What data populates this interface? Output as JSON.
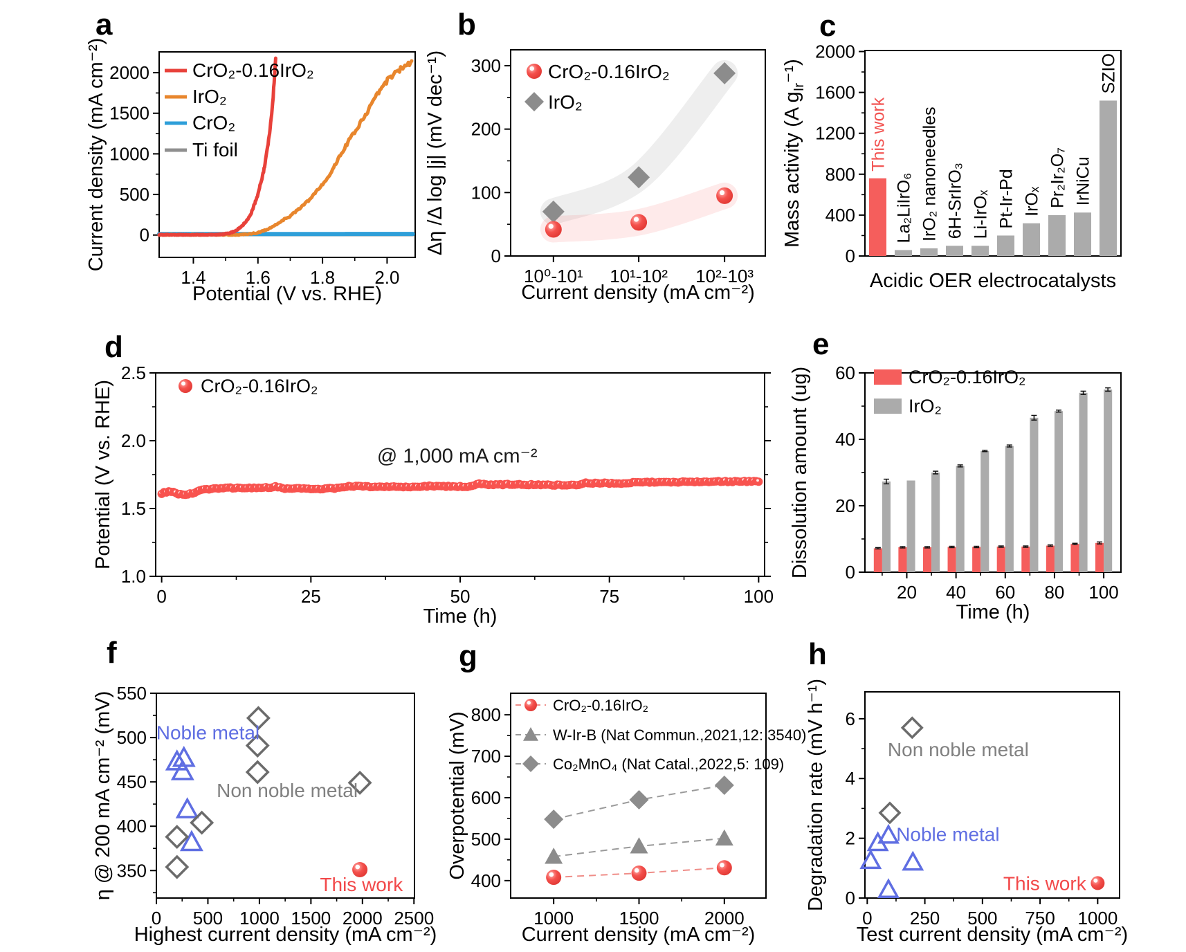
{
  "figure_title": "Acidic OER electrocatalyst performance figure",
  "chart_data": [
    {
      "panel": "a",
      "type": "line",
      "xlabel": "Potential (V vs. RHE)",
      "ylabel": "Current density (mA cm⁻²)",
      "xlim": [
        1.294,
        2.087
      ],
      "ylim": [
        -275,
        2256
      ],
      "xticks": [
        1.4,
        1.6,
        1.8,
        2.0
      ],
      "xtick_labels": [
        "1.4",
        "1.6",
        "1.8",
        "2.0"
      ],
      "yticks": [
        0,
        500,
        1000,
        1500,
        2000
      ],
      "ytick_labels": [
        "0",
        "500",
        "1000",
        "1500",
        "2000"
      ],
      "series": [
        {
          "name": "CrO₂-0.16IrO₂",
          "color": "#e8413a",
          "width": 5,
          "points": [
            [
              1.294,
              2
            ],
            [
              1.44,
              2
            ],
            [
              1.48,
              6
            ],
            [
              1.51,
              20
            ],
            [
              1.53,
              50
            ],
            [
              1.55,
              110
            ],
            [
              1.57,
              200
            ],
            [
              1.58,
              280
            ],
            [
              1.6,
              500
            ],
            [
              1.62,
              830
            ],
            [
              1.63,
              1080
            ],
            [
              1.64,
              1390
            ],
            [
              1.645,
              1600
            ],
            [
              1.65,
              1880
            ],
            [
              1.652,
              2020
            ],
            [
              1.654,
              2120
            ],
            [
              1.655,
              2180
            ]
          ]
        },
        {
          "name": "IrO₂",
          "color": "#e8862d",
          "width": 5,
          "points": [
            [
              1.294,
              2
            ],
            [
              1.54,
              2
            ],
            [
              1.58,
              15
            ],
            [
              1.6,
              30
            ],
            [
              1.62,
              55
            ],
            [
              1.64,
              90
            ],
            [
              1.66,
              140
            ],
            [
              1.68,
              190
            ],
            [
              1.7,
              235
            ],
            [
              1.73,
              330
            ],
            [
              1.76,
              440
            ],
            [
              1.79,
              580
            ],
            [
              1.82,
              730
            ],
            [
              1.85,
              950
            ],
            [
              1.88,
              1150
            ],
            [
              1.91,
              1330
            ],
            [
              1.94,
              1530
            ],
            [
              1.97,
              1750
            ],
            [
              2.0,
              1900
            ],
            [
              2.03,
              2010
            ],
            [
              2.05,
              2070
            ],
            [
              2.076,
              2140
            ]
          ]
        },
        {
          "name": "CrO₂",
          "color": "#2e9fd9",
          "width": 6,
          "points": [
            [
              1.294,
              12
            ],
            [
              2.08,
              14
            ]
          ]
        },
        {
          "name": "Ti foil",
          "color": "#8f8f8f",
          "width": 4,
          "points": [
            [
              1.294,
              2
            ],
            [
              2.08,
              2
            ]
          ]
        }
      ]
    },
    {
      "panel": "b",
      "type": "tafel-scatter",
      "xlabel": "Current density (mA cm⁻²)",
      "ylabel": "Δη /Δ log |j| (mV dec⁻¹)",
      "ylim": [
        0,
        325
      ],
      "categories": [
        "10⁰-10¹",
        "10¹-10²",
        "10²-10³"
      ],
      "yticks": [
        0,
        100,
        200,
        300
      ],
      "ytick_labels": [
        "0",
        "100",
        "200",
        "300"
      ],
      "series": [
        {
          "name": "IrO₂",
          "marker": "diamond",
          "color": "#8c8c8c",
          "band": "rgba(150,150,150,0.16)",
          "values": [
            70,
            124,
            288
          ]
        },
        {
          "name": "CrO₂-0.16IrO₂",
          "marker": "ball",
          "color": "#f4504c",
          "band": "rgba(246,95,95,0.13)",
          "values": [
            42,
            53,
            95
          ]
        }
      ],
      "legend_order": [
        "CrO₂-0.16IrO₂",
        "IrO₂"
      ]
    },
    {
      "panel": "c",
      "type": "bar",
      "xlabel": "Acidic OER electrocatalysts",
      "ylabel": "Mass activity (A g~Ir~⁻¹)",
      "ylim": [
        0,
        2010
      ],
      "yticks": [
        0,
        400,
        800,
        1200,
        1600,
        2000
      ],
      "ytick_labels": [
        "0",
        "400",
        "800",
        "1200",
        "1600",
        "2000"
      ],
      "categories": [
        "This work",
        "La₂LiIrO₆",
        "IrO₂ nanoneedles",
        "6H-SrIrO₃",
        "Li-IrOₓ",
        "Pt-Ir-Pd",
        "IrOₓ",
        "Pr₂Ir₂O₇",
        "IrNiCu",
        "SZIO"
      ],
      "values": [
        760,
        58,
        75,
        100,
        100,
        200,
        320,
        400,
        425,
        1520
      ],
      "bar_colors": [
        "#f55e5c",
        "#ababab",
        "#ababab",
        "#ababab",
        "#ababab",
        "#ababab",
        "#ababab",
        "#ababab",
        "#ababab",
        "#ababab"
      ],
      "label_colors": [
        "#f25553",
        "#000000",
        "#000000",
        "#000000",
        "#000000",
        "#000000",
        "#000000",
        "#000000",
        "#000000",
        "#000000"
      ]
    },
    {
      "panel": "d",
      "type": "stability-scatter",
      "xlabel": "Time (h)",
      "ylabel": "Potential (V vs. RHE)",
      "xlim": [
        -1,
        101
      ],
      "ylim": [
        1.0,
        2.5
      ],
      "xticks": [
        0,
        25,
        50,
        75,
        100
      ],
      "xtick_labels": [
        "0",
        "25",
        "50",
        "75",
        "100"
      ],
      "yticks": [
        1.0,
        1.5,
        2.0,
        2.5
      ],
      "ytick_labels": [
        "1.0",
        "1.5",
        "2.0",
        "2.5"
      ],
      "series_name": "CrO₂-0.16IrO₂",
      "color": "#f8534f",
      "annotation": {
        "text": "@ 1,000 mA cm⁻²",
        "x": 49.5,
        "y": 1.84,
        "color": "#1a1a1a"
      },
      "anchors": [
        [
          0,
          1.612
        ],
        [
          1,
          1.625
        ],
        [
          2,
          1.618
        ],
        [
          3,
          1.605
        ],
        [
          4,
          1.603
        ],
        [
          5,
          1.61
        ],
        [
          6,
          1.625
        ],
        [
          7,
          1.638
        ],
        [
          8,
          1.645
        ],
        [
          9,
          1.648
        ],
        [
          10,
          1.65
        ],
        [
          12,
          1.652
        ],
        [
          14,
          1.653
        ],
        [
          16,
          1.65
        ],
        [
          18,
          1.655
        ],
        [
          19,
          1.662
        ],
        [
          20,
          1.655
        ],
        [
          21,
          1.645
        ],
        [
          22,
          1.648
        ],
        [
          24,
          1.648
        ],
        [
          26,
          1.644
        ],
        [
          28,
          1.648
        ],
        [
          30,
          1.65
        ],
        [
          31,
          1.662
        ],
        [
          32,
          1.665
        ],
        [
          34,
          1.662
        ],
        [
          36,
          1.66
        ],
        [
          38,
          1.662
        ],
        [
          40,
          1.658
        ],
        [
          42,
          1.658
        ],
        [
          44,
          1.663
        ],
        [
          45,
          1.668
        ],
        [
          46,
          1.663
        ],
        [
          48,
          1.663
        ],
        [
          50,
          1.662
        ],
        [
          52,
          1.662
        ],
        [
          53,
          1.682
        ],
        [
          54,
          1.678
        ],
        [
          56,
          1.675
        ],
        [
          58,
          1.678
        ],
        [
          60,
          1.678
        ],
        [
          62,
          1.676
        ],
        [
          64,
          1.676
        ],
        [
          66,
          1.673
        ],
        [
          68,
          1.674
        ],
        [
          70,
          1.672
        ],
        [
          71,
          1.692
        ],
        [
          72,
          1.688
        ],
        [
          74,
          1.688
        ],
        [
          76,
          1.686
        ],
        [
          78,
          1.684
        ],
        [
          80,
          1.698
        ],
        [
          82,
          1.694
        ],
        [
          84,
          1.692
        ],
        [
          86,
          1.695
        ],
        [
          88,
          1.698
        ],
        [
          90,
          1.698
        ],
        [
          92,
          1.699
        ],
        [
          94,
          1.7
        ],
        [
          96,
          1.7
        ],
        [
          98,
          1.7
        ],
        [
          100,
          1.7
        ]
      ]
    },
    {
      "panel": "e",
      "type": "grouped-bar",
      "xlabel": "Time (h)",
      "ylabel": "Dissolution amount (ug)",
      "xlim": [
        3,
        107
      ],
      "ylim": [
        0,
        60
      ],
      "xticks": [
        20,
        40,
        60,
        80,
        100
      ],
      "xtick_labels": [
        "20",
        "40",
        "60",
        "80",
        "100"
      ],
      "yticks": [
        0,
        20,
        40,
        60
      ],
      "ytick_labels": [
        "0",
        "20",
        "40",
        "60"
      ],
      "x": [
        10,
        20,
        30,
        40,
        50,
        60,
        70,
        80,
        90,
        100
      ],
      "series": [
        {
          "name": "CrO₂-0.16IrO₂",
          "color": "#f55e5c",
          "values": [
            7.2,
            7.5,
            7.5,
            7.6,
            7.6,
            7.7,
            7.7,
            8.0,
            8.5,
            8.8
          ],
          "errors": [
            0.2,
            0.2,
            0.2,
            0.2,
            0.2,
            0.2,
            0.2,
            0.2,
            0.2,
            0.3
          ]
        },
        {
          "name": "IrO₂",
          "color": "#ababab",
          "values": [
            27.3,
            27.6,
            30.0,
            32.0,
            36.5,
            38.0,
            46.5,
            48.5,
            54.0,
            55.0
          ],
          "errors": [
            0.7,
            0.0,
            0.4,
            0.3,
            0.2,
            0.3,
            0.7,
            0.3,
            0.5,
            0.5
          ]
        }
      ]
    },
    {
      "panel": "f",
      "type": "scatter",
      "xlabel": "Highest current density (mA cm⁻²)",
      "ylabel": "η @ 200 mA cm⁻² (mV)",
      "xlim": [
        0,
        2505
      ],
      "ylim": [
        319,
        550
      ],
      "xticks": [
        0,
        500,
        1000,
        1500,
        2000,
        2500
      ],
      "xtick_labels": [
        "0",
        "500",
        "1000",
        "1500",
        "2000",
        "2500"
      ],
      "yticks": [
        350,
        400,
        450,
        500,
        550
      ],
      "ytick_labels": [
        "350",
        "400",
        "450",
        "500",
        "550"
      ],
      "series": [
        {
          "name": "Noble metal",
          "marker": "triangle-open",
          "color": "#5f6ee2",
          "points": [
            [
              200,
              473
            ],
            [
              267,
              477
            ],
            [
              254,
              462
            ],
            [
              300,
              419
            ],
            [
              342,
              382
            ]
          ]
        },
        {
          "name": "Non noble metal",
          "marker": "diamond-open",
          "color": "#6b6b6b",
          "points": [
            [
              990,
              522
            ],
            [
              982,
              491
            ],
            [
              982,
              461
            ],
            [
              1975,
              449
            ],
            [
              441,
              404
            ],
            [
              200,
              388
            ],
            [
              200,
              354
            ]
          ]
        },
        {
          "name": "This work",
          "marker": "ball",
          "color": "#f4504c",
          "points": [
            [
              1975,
              351
            ]
          ]
        }
      ],
      "annotations": [
        {
          "text": "Noble metal",
          "color": "#5f6ee2",
          "x": 500,
          "y": 505,
          "anchor": "middle"
        },
        {
          "text": "Non noble metal",
          "color": "#808080",
          "x": 1270,
          "y": 440,
          "anchor": "middle"
        },
        {
          "text": "This work",
          "color": "#f2494a",
          "x": 1990,
          "y": 334,
          "anchor": "middle"
        }
      ]
    },
    {
      "panel": "g",
      "type": "scatter-dash",
      "xlabel": "Current density (mA cm⁻²)",
      "ylabel": "Overpotential (mV)",
      "xlim": [
        748,
        2244
      ],
      "ylim": [
        358,
        852
      ],
      "xticks": [
        1000,
        1500,
        2000
      ],
      "xtick_labels": [
        "1000",
        "1500",
        "2000"
      ],
      "yticks": [
        400,
        500,
        600,
        700,
        800
      ],
      "ytick_labels": [
        "400",
        "500",
        "600",
        "700",
        "800"
      ],
      "x": [
        1000,
        1500,
        2000
      ],
      "series": [
        {
          "name": "CrO₂-0.16IrO₂",
          "marker": "ball",
          "color": "#f4504c",
          "line_color": "#ef8d88",
          "values": [
            408,
            418,
            431
          ]
        },
        {
          "name": "W-Ir-B (Nat Commun.,2021,12: 3540)",
          "marker": "triangle",
          "color": "#8c8c8c",
          "line_color": "#9a9a9a",
          "values": [
            458,
            483,
            502
          ]
        },
        {
          "name": "Co₂MnO₄ (Nat Catal.,2022,5: 109)",
          "marker": "diamond",
          "color": "#8c8c8c",
          "line_color": "#9a9a9a",
          "values": [
            548,
            595,
            630
          ]
        }
      ]
    },
    {
      "panel": "h",
      "type": "scatter",
      "xlabel": "Test current density (mA cm⁻²)",
      "ylabel": "Degradation rate (mV h⁻¹)",
      "xlim": [
        -10,
        1095
      ],
      "ylim": [
        0,
        6.9
      ],
      "xticks": [
        0,
        250,
        500,
        750,
        1000
      ],
      "xtick_labels": [
        "0",
        "250",
        "500",
        "750",
        "1000"
      ],
      "yticks": [
        0,
        2,
        4,
        6
      ],
      "ytick_labels": [
        "0",
        "2",
        "4",
        "6"
      ],
      "series": [
        {
          "name": "Non noble metal",
          "marker": "diamond-open",
          "color": "#6b6b6b",
          "points": [
            [
              195,
              5.7
            ],
            [
              98,
              2.85
            ]
          ]
        },
        {
          "name": "Noble metal",
          "marker": "triangle-open",
          "color": "#5f6ee2",
          "points": [
            [
              15,
              1.25
            ],
            [
              46,
              1.85
            ],
            [
              92,
              2.1
            ],
            [
              198,
              1.2
            ],
            [
              92,
              0.28
            ]
          ]
        },
        {
          "name": "This work",
          "marker": "ball",
          "color": "#f4504c",
          "points": [
            [
              1000,
              0.5
            ]
          ]
        }
      ],
      "annotations": [
        {
          "text": "Non noble metal",
          "color": "#808080",
          "x": 395,
          "y": 4.95,
          "anchor": "middle"
        },
        {
          "text": "Noble metal",
          "color": "#5f6ee2",
          "x": 350,
          "y": 2.12,
          "anchor": "middle"
        },
        {
          "text": "This work",
          "color": "#f2494a",
          "x": 950,
          "y": 0.47,
          "anchor": "end"
        }
      ]
    }
  ]
}
